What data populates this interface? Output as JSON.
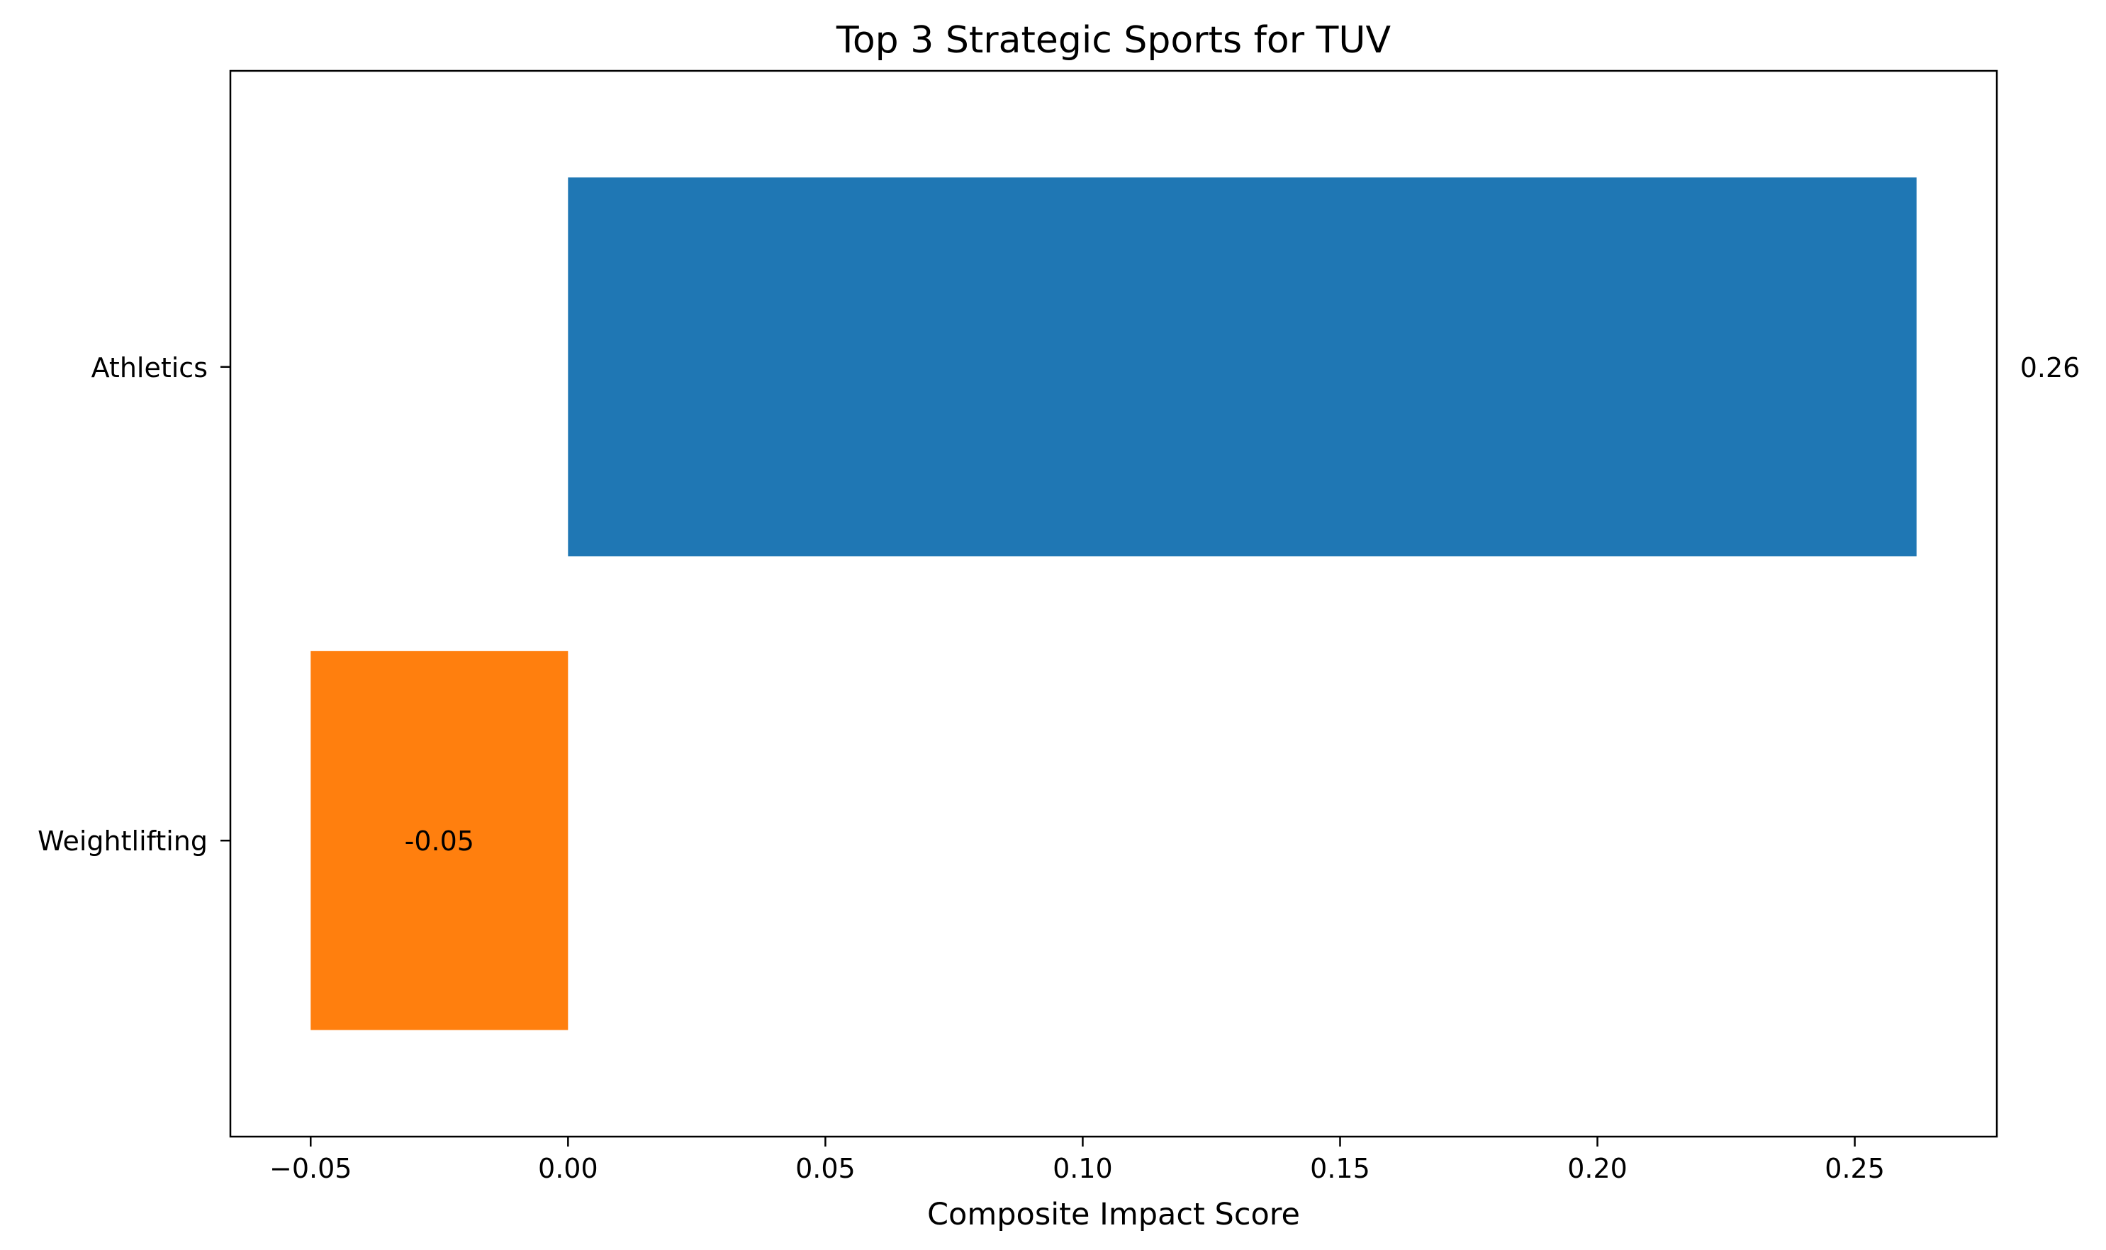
{
  "chart_data": {
    "type": "bar",
    "orientation": "horizontal",
    "title": "Top 3 Strategic Sports for TUV",
    "xlabel": "Composite Impact Score",
    "ylabel": "",
    "categories": [
      "Athletics",
      "Weightlifting"
    ],
    "values": [
      0.262,
      -0.05
    ],
    "value_labels": [
      "0.26",
      "-0.05"
    ],
    "colors": [
      "#1f77b4",
      "#ff7f0e"
    ],
    "xlim": [
      -0.0656,
      0.2776
    ],
    "x_ticks": [
      -0.05,
      0.0,
      0.05,
      0.1,
      0.15,
      0.2,
      0.25
    ],
    "x_tick_labels": [
      "−0.05",
      "0.00",
      "0.05",
      "0.10",
      "0.15",
      "0.20",
      "0.25"
    ],
    "grid": false,
    "legend": "none"
  }
}
